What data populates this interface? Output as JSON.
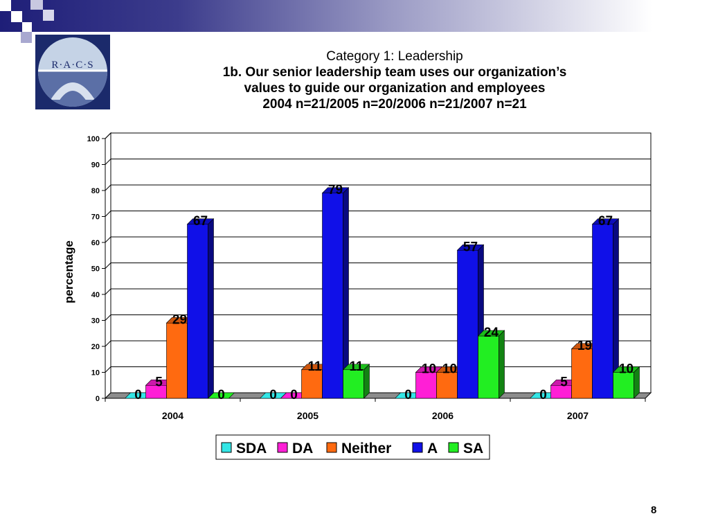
{
  "logo": {
    "text": "R·A·C·S"
  },
  "title": {
    "line1": "Category 1: Leadership",
    "line2": "1b. Our senior leadership team uses our organization’s",
    "line3": "values to guide our organization and employees",
    "line4": "2004 n=21/2005 n=20/2006 n=21/2007 n=21"
  },
  "page_number": "8",
  "colors": {
    "band_dark": "#1e1e78",
    "SDA": "#33e6e6",
    "DA": "#ff1fd6",
    "Neither": "#ff6a10",
    "A": "#1010e8",
    "SA": "#22ee22"
  },
  "chart_data": {
    "type": "bar",
    "title": "",
    "xlabel": "",
    "ylabel": "percentage",
    "ylim": [
      0,
      100
    ],
    "yticks": [
      0,
      10,
      20,
      30,
      40,
      50,
      60,
      70,
      80,
      90,
      100
    ],
    "grid": true,
    "legend_position": "bottom",
    "categories": [
      "2004",
      "2005",
      "2006",
      "2007"
    ],
    "series": [
      {
        "name": "SDA",
        "values": [
          0,
          0,
          0,
          0
        ]
      },
      {
        "name": "DA",
        "values": [
          5,
          0,
          10,
          5
        ]
      },
      {
        "name": "Neither",
        "values": [
          29,
          11,
          10,
          19
        ]
      },
      {
        "name": "A",
        "values": [
          67,
          79,
          57,
          67
        ]
      },
      {
        "name": "SA",
        "values": [
          0,
          11,
          24,
          10
        ]
      }
    ]
  }
}
